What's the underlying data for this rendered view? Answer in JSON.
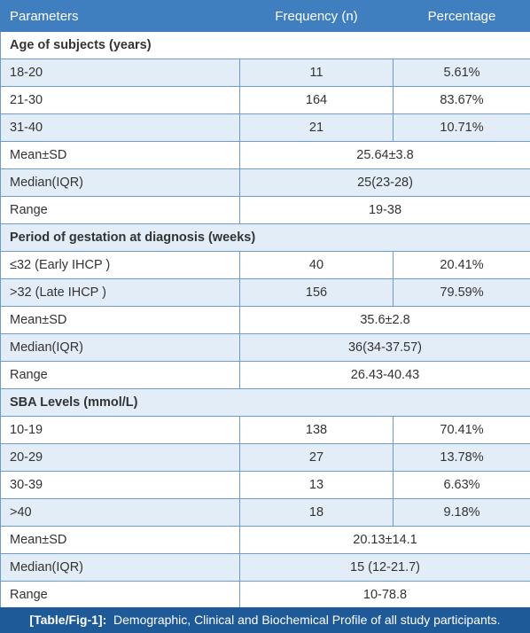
{
  "table": {
    "header": [
      "Parameters",
      "Frequency (n)",
      "Percentage"
    ],
    "rows": [
      [
        "Age of subjects (years)"
      ],
      [
        "18-20",
        "11",
        "5.61%"
      ],
      [
        "21-30",
        "164",
        "83.67%"
      ],
      [
        "31-40",
        "21",
        "10.71%"
      ],
      [
        "Mean±SD",
        "25.64±3.8"
      ],
      [
        "Median(IQR)",
        "25(23-28)"
      ],
      [
        "Range",
        "19-38"
      ],
      [
        "Period of gestation at diagnosis (weeks)"
      ],
      [
        "≤32 (Early IHCP )",
        "40",
        "20.41%"
      ],
      [
        ">32 (Late IHCP )",
        "156",
        "79.59%"
      ],
      [
        "Mean±SD",
        "35.6±2.8"
      ],
      [
        "Median(IQR)",
        "36(34-37.57)"
      ],
      [
        "Range",
        "26.43-40.43"
      ],
      [
        "SBA Levels (mmol/L)"
      ],
      [
        "10-19",
        "138",
        "70.41%"
      ],
      [
        "20-29",
        "27",
        "13.78%"
      ],
      [
        "30-39",
        "13",
        "6.63%"
      ],
      [
        ">40",
        "18",
        "9.18%"
      ],
      [
        "Mean±SD",
        "20.13±14.1"
      ],
      [
        "Median(IQR)",
        "15 (12-21.7)"
      ],
      [
        "Range",
        "10-78.8"
      ]
    ]
  },
  "caption": {
    "label": "[Table/Fig-1]:",
    "text": "Demographic, Clinical and Biochemical Profile of all study participants."
  }
}
